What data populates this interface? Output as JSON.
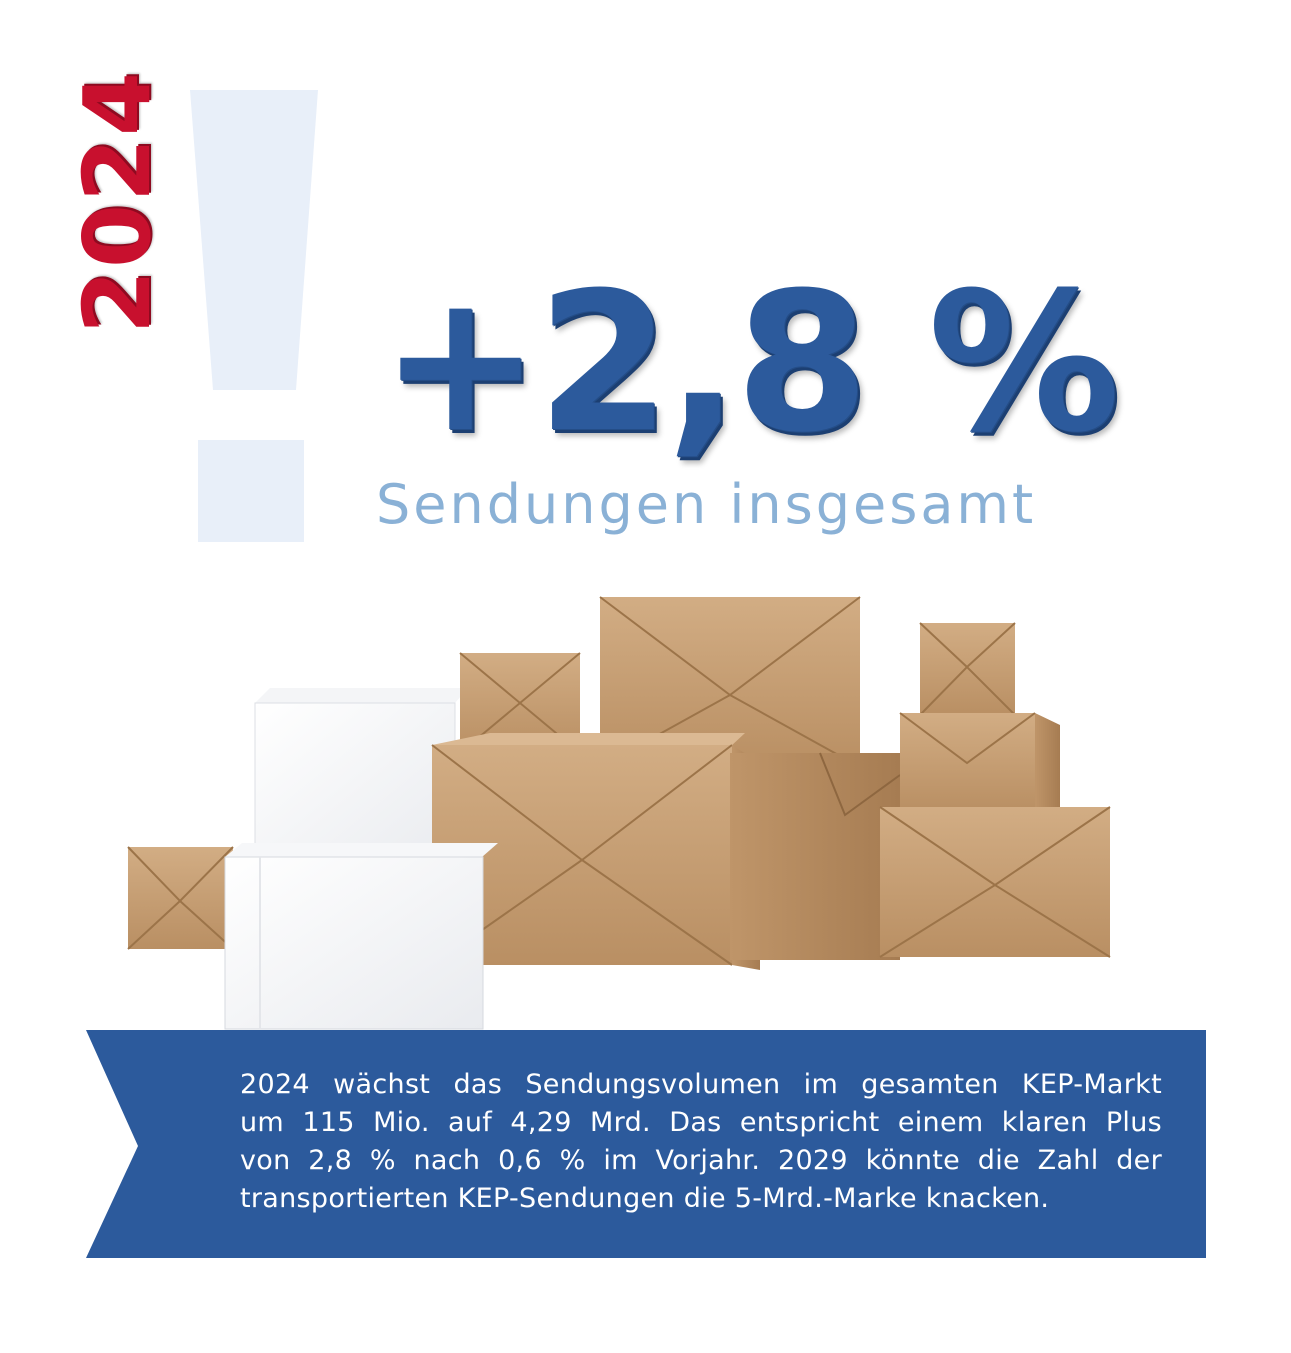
{
  "year": "2024",
  "headline": {
    "value": "+2,8 %",
    "subtitle": "Sendungen insgesamt"
  },
  "description_lines": [
    "2024 wächst das Sendungsvolumen im gesamten KEP-Markt",
    "um 115 Mio. auf 4,29 Mrd. Das entspricht einem klaren Plus",
    "von 2,8 % nach 0,6 % im Vorjahr. 2029 könnte die Zahl der",
    "transportierten KEP-Sendungen die 5-Mrd.-Marke knacken."
  ],
  "colors": {
    "year_red": "#c8102e",
    "headline_blue": "#2c5a9c",
    "subtitle_blue": "#8ab1d6",
    "exclamation_light_blue": "#e8eff9",
    "banner_blue": "#2c5a9c",
    "kraft_paper": "#c9a47b"
  },
  "icons": [
    "exclamation-mark-graphic",
    "parcel-boxes-illustration",
    "ribbon-banner"
  ]
}
